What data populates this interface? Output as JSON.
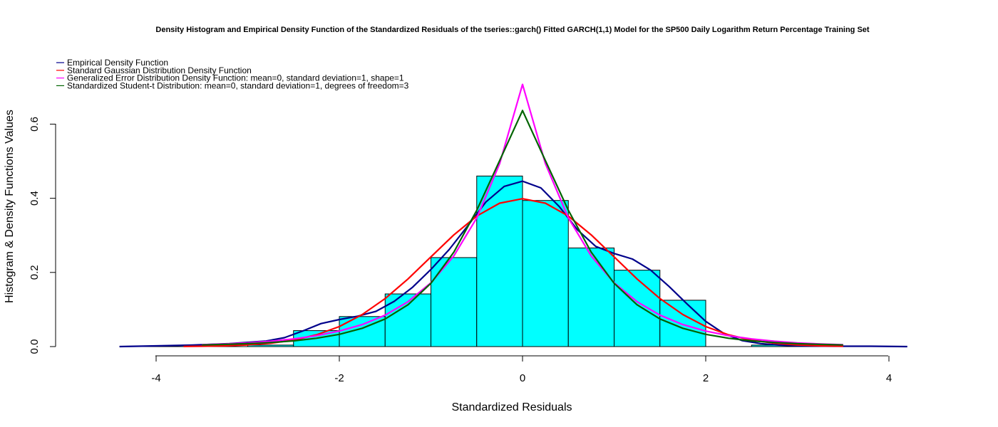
{
  "chart_data": {
    "type": "bar",
    "title": "Density Histogram and Empirical Density Function of the Standardized Residuals of the tseries::garch() Fitted GARCH(1,1) Model for the SP500 Daily Logarithm Return Percentage Training Set",
    "xlabel": "Standardized Residuals",
    "ylabel": "Histogram & Density Functions Values",
    "xlim": [
      -4.4,
      4.2
    ],
    "ylim": [
      0,
      0.7
    ],
    "x_ticks": [
      -4,
      -2,
      0,
      2,
      4
    ],
    "y_ticks": [
      0.0,
      0.2,
      0.4,
      0.6
    ],
    "x_tick_labels": [
      "-4",
      "-2",
      "0",
      "2",
      "4"
    ],
    "y_tick_labels": [
      "0.0",
      "0.2",
      "0.4",
      "0.6"
    ],
    "histogram": {
      "fill_color": "#00FFFF",
      "border_color": "#000000",
      "bins": [
        {
          "x0": -3.0,
          "x1": -2.5,
          "density": 0.004
        },
        {
          "x0": -2.5,
          "x1": -2.0,
          "density": 0.043
        },
        {
          "x0": -2.0,
          "x1": -1.5,
          "density": 0.081
        },
        {
          "x0": -1.5,
          "x1": -1.0,
          "density": 0.142
        },
        {
          "x0": -1.0,
          "x1": -0.5,
          "density": 0.24
        },
        {
          "x0": -0.5,
          "x1": 0.0,
          "density": 0.46
        },
        {
          "x0": 0.0,
          "x1": 0.5,
          "density": 0.394
        },
        {
          "x0": 0.5,
          "x1": 1.0,
          "density": 0.266
        },
        {
          "x0": 1.0,
          "x1": 1.5,
          "density": 0.206
        },
        {
          "x0": 1.5,
          "x1": 2.0,
          "density": 0.125
        },
        {
          "x0": 2.0,
          "x1": 2.5,
          "density": 0.0
        },
        {
          "x0": 2.5,
          "x1": 3.0,
          "density": 0.004
        }
      ]
    },
    "series": [
      {
        "name": "Empirical Density Function",
        "color": "#00008B",
        "x": [
          -4.4,
          -4.0,
          -3.6,
          -3.2,
          -2.8,
          -2.6,
          -2.4,
          -2.2,
          -2.0,
          -1.8,
          -1.6,
          -1.4,
          -1.2,
          -1.0,
          -0.8,
          -0.6,
          -0.4,
          -0.2,
          0.0,
          0.2,
          0.4,
          0.6,
          0.8,
          1.0,
          1.2,
          1.4,
          1.6,
          1.8,
          2.0,
          2.2,
          2.4,
          2.6,
          2.8,
          3.0,
          3.4,
          3.8,
          4.2
        ],
        "y": [
          0.0,
          0.002,
          0.004,
          0.008,
          0.015,
          0.024,
          0.042,
          0.062,
          0.073,
          0.082,
          0.095,
          0.122,
          0.16,
          0.208,
          0.262,
          0.325,
          0.39,
          0.432,
          0.446,
          0.428,
          0.378,
          0.315,
          0.27,
          0.251,
          0.236,
          0.206,
          0.162,
          0.114,
          0.068,
          0.035,
          0.016,
          0.008,
          0.004,
          0.002,
          0.001,
          0.001,
          0.0
        ]
      },
      {
        "name": "Standard Gaussian Distribution Density Function",
        "color": "#FF0000",
        "x": [
          -3.7,
          -3.5,
          -3.25,
          -3.0,
          -2.75,
          -2.5,
          -2.25,
          -2.0,
          -1.75,
          -1.5,
          -1.25,
          -1.0,
          -0.75,
          -0.5,
          -0.25,
          0.0,
          0.25,
          0.5,
          0.75,
          1.0,
          1.25,
          1.5,
          1.75,
          2.0,
          2.25,
          2.5,
          2.75,
          3.0,
          3.25,
          3.5
        ],
        "y": [
          0.0004,
          0.0009,
          0.002,
          0.0044,
          0.0091,
          0.0175,
          0.0317,
          0.054,
          0.0863,
          0.1295,
          0.1826,
          0.242,
          0.3011,
          0.3521,
          0.3867,
          0.3989,
          0.3867,
          0.3521,
          0.3011,
          0.242,
          0.1826,
          0.1295,
          0.0863,
          0.054,
          0.0317,
          0.0175,
          0.0091,
          0.0044,
          0.002,
          0.0009
        ]
      },
      {
        "name": "Generalized Error Distribution Density Function: mean=0, standard deviation=1, shape=1",
        "color": "#FF00FF",
        "x": [
          -3.5,
          -3.25,
          -3.0,
          -2.75,
          -2.5,
          -2.25,
          -2.0,
          -1.75,
          -1.5,
          -1.25,
          -1.0,
          -0.75,
          -0.5,
          -0.25,
          0.0,
          0.25,
          0.5,
          0.75,
          1.0,
          1.25,
          1.5,
          1.75,
          2.0,
          2.25,
          2.5,
          2.75,
          3.0,
          3.25,
          3.5
        ],
        "y": [
          0.005,
          0.0071,
          0.01,
          0.0143,
          0.0208,
          0.0294,
          0.0419,
          0.0594,
          0.0848,
          0.1211,
          0.1719,
          0.2443,
          0.3471,
          0.4932,
          0.7071,
          0.4932,
          0.3471,
          0.2443,
          0.1719,
          0.1211,
          0.0848,
          0.0594,
          0.0419,
          0.0294,
          0.0208,
          0.0143,
          0.01,
          0.0071,
          0.005
        ]
      },
      {
        "name": "Standardized Student-t Distribution: mean=0, standard deviation=1, degrees of freedom=3",
        "color": "#006400",
        "x": [
          -3.5,
          -3.25,
          -3.0,
          -2.75,
          -2.5,
          -2.25,
          -2.0,
          -1.75,
          -1.5,
          -1.25,
          -1.0,
          -0.75,
          -0.5,
          -0.25,
          0.0,
          0.25,
          0.5,
          0.75,
          1.0,
          1.25,
          1.5,
          1.75,
          2.0,
          2.25,
          2.5,
          2.75,
          3.0,
          3.25,
          3.5
        ],
        "y": [
          0.0045,
          0.0059,
          0.0079,
          0.0109,
          0.0154,
          0.0224,
          0.0331,
          0.0494,
          0.0745,
          0.1129,
          0.1706,
          0.2546,
          0.3676,
          0.5015,
          0.6366,
          0.5015,
          0.3676,
          0.2546,
          0.1706,
          0.1129,
          0.0745,
          0.0494,
          0.0331,
          0.0224,
          0.0154,
          0.0109,
          0.0079,
          0.0059,
          0.0045
        ]
      }
    ],
    "legend": {
      "placement": "top-left",
      "border": false
    },
    "grid": false
  }
}
